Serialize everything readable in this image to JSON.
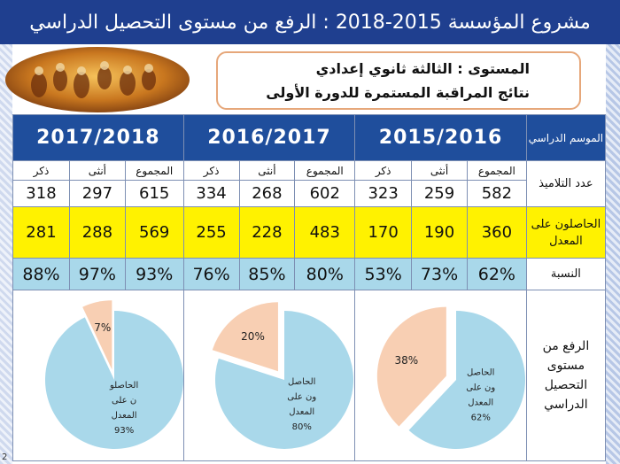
{
  "title": "مشروع المؤسسة 2015-2018 : الرفع من مستوى التحصيل الدراسي",
  "info": {
    "line1": "المستوى : الثالثة ثانوي إعدادي",
    "line2": "نتائج  المراقبة المستمرة للدورة الأولى"
  },
  "table": {
    "season_label": "الموسم الدراسي",
    "years": [
      "2015/2016",
      "2016/2017",
      "2017/2018"
    ],
    "sub_headers": [
      "المجموع",
      "أنثى",
      "ذكر"
    ],
    "rows": {
      "students": {
        "label": "عدد التلاميذ",
        "values": [
          [
            "582",
            "259",
            "323"
          ],
          [
            "602",
            "268",
            "334"
          ],
          [
            "615",
            "297",
            "318"
          ]
        ]
      },
      "passed": {
        "label": "الحاصلون على المعدل",
        "values": [
          [
            "360",
            "190",
            "170"
          ],
          [
            "483",
            "228",
            "255"
          ],
          [
            "569",
            "288",
            "281"
          ]
        ]
      },
      "ratio": {
        "label": "النسبة",
        "values": [
          [
            "62%",
            "73%",
            "53%"
          ],
          [
            "80%",
            "85%",
            "76%"
          ],
          [
            "93%",
            "97%",
            "88%"
          ]
        ]
      }
    },
    "improvement_label": "الرفع من مستوى التحصيل الدراسي"
  },
  "pies": [
    {
      "year": "2015/2016",
      "passed": 62,
      "other_label": "38%",
      "main_label": [
        "الحاصل",
        "ون على",
        "المعدل",
        "62%"
      ]
    },
    {
      "year": "2016/2017",
      "passed": 80,
      "other_label": "20%",
      "main_label": [
        "الحاصل",
        "ون على",
        "المعدل",
        "80%"
      ]
    },
    {
      "year": "2017/2018",
      "passed": 93,
      "other_label": "7%",
      "main_label": [
        "الحاصلو",
        "ن على",
        "المعدل",
        "93%"
      ]
    }
  ],
  "colors": {
    "header_blue": "#1f4e9c",
    "yellow": "#fff200",
    "ratio_blue": "#a9d8ea",
    "pie_main": "#a9d8ea",
    "pie_other": "#f8cfb3"
  },
  "page_number": "2"
}
